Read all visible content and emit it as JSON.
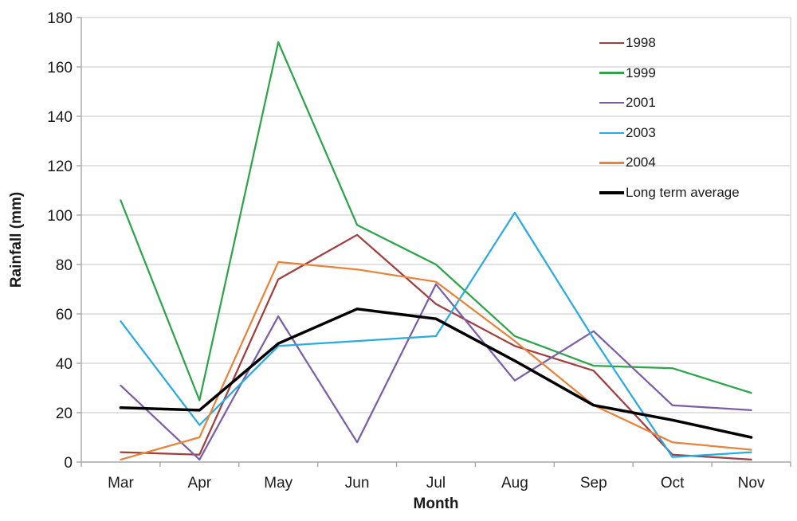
{
  "chart_data": {
    "type": "line",
    "title": "",
    "xlabel": "Month",
    "ylabel": "Rainfall (mm)",
    "ylim": [
      0,
      180
    ],
    "ytick_step": 20,
    "y_tick_labels": [
      "0",
      "20",
      "40",
      "60",
      "80",
      "100",
      "120",
      "140",
      "160",
      "180"
    ],
    "grid": true,
    "legend_position": "top-right",
    "grid_color": "#d9d9d9",
    "axis_color": "#a6a6a6",
    "categories": [
      "Mar",
      "Apr",
      "May",
      "Jun",
      "Jul",
      "Aug",
      "Sep",
      "Oct",
      "Nov"
    ],
    "series": [
      {
        "name": "1998",
        "color": "#a13e3e",
        "width": 2.25,
        "values": [
          4,
          3,
          74,
          92,
          64,
          47,
          37,
          3,
          1
        ]
      },
      {
        "name": "1999",
        "color": "#2ea44a",
        "width": 2.25,
        "values": [
          106,
          25,
          170,
          96,
          80,
          51,
          39,
          38,
          28
        ]
      },
      {
        "name": "2001",
        "color": "#7b5ea7",
        "width": 2.25,
        "values": [
          31,
          1,
          59,
          8,
          72,
          33,
          53,
          23,
          21
        ]
      },
      {
        "name": "2003",
        "color": "#29abe2",
        "width": 2.25,
        "values": [
          57,
          15,
          47,
          49,
          51,
          101,
          50,
          2,
          4
        ]
      },
      {
        "name": "2004",
        "color": "#e8833a",
        "width": 2.25,
        "values": [
          1,
          10,
          81,
          78,
          73,
          49,
          23,
          8,
          5
        ]
      },
      {
        "name": "Long term average",
        "color": "#000000",
        "width": 3.5,
        "values": [
          22,
          21,
          48,
          62,
          58,
          41,
          23,
          17,
          10
        ]
      }
    ]
  }
}
